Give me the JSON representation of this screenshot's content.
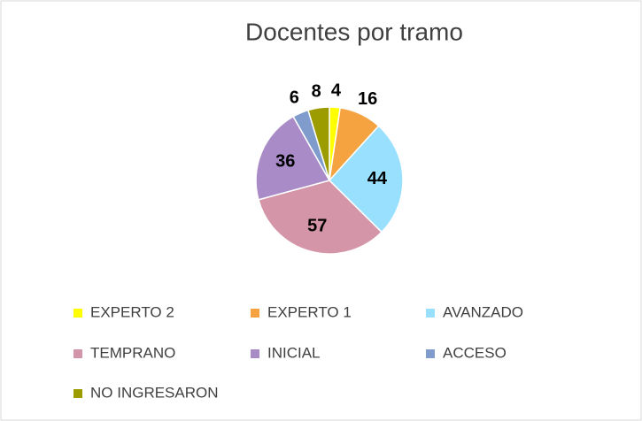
{
  "chart_data": {
    "type": "pie",
    "title": "Docentes por tramo",
    "categories": [
      "EXPERTO 2",
      "EXPERTO 1",
      "AVANZADO",
      "TEMPRANO",
      "INICIAL",
      "ACCESO",
      "NO INGRESARON"
    ],
    "values": [
      4,
      16,
      44,
      57,
      36,
      6,
      8
    ],
    "colors": [
      "#ffff00",
      "#f4a340",
      "#99e0ff",
      "#d495a8",
      "#a98bc8",
      "#7f9ccc",
      "#9c9c00"
    ]
  }
}
